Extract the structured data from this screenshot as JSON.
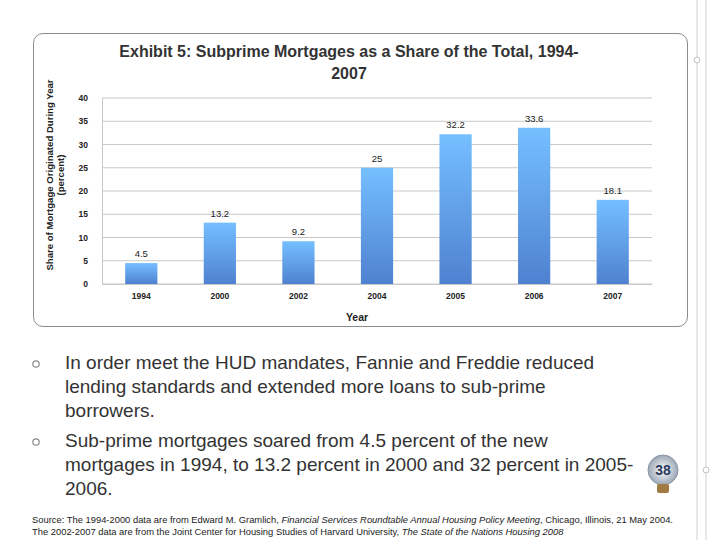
{
  "chart_data": {
    "type": "bar",
    "title": "Exhibit 5: Subprime Mortgages as a Share of the Total, 1994-2007",
    "xlabel": "Year",
    "ylabel": "Share of Mortgage Originated During Year (percent)",
    "categories": [
      "1994",
      "2000",
      "2002",
      "2004",
      "2005",
      "2006",
      "2007"
    ],
    "values": [
      4.5,
      13.2,
      9.2,
      25,
      32.2,
      33.6,
      18.1
    ],
    "color": "#4f81d0",
    "ylim": [
      0,
      40
    ],
    "yticks": [
      0,
      5,
      10,
      15,
      20,
      25,
      30,
      35,
      40
    ],
    "grid": true,
    "data_labels": true
  },
  "slide": {
    "bullets": [
      "In order meet the HUD mandates, Fannie and Freddie reduced lending standards and extended more loans to sub-prime borrowers.",
      "Sub-prime mortgages soared from 4.5 percent of the new mortgages in 1994, to 13.2 percent in 2000 and 32 percent in 2005-2006."
    ],
    "source": [
      "Source: The 1994-2000 data are from Edward M. Gramlich, ",
      "Financial Services Roundtable Annual Housing Policy Meeting",
      ", Chicago, Illinois, 21 May 2004. The 2002-2007 data are from the Joint Center for Housing Studies of Harvard University, ",
      "The State of the Nations Housing 2008"
    ],
    "page_number": 38
  }
}
